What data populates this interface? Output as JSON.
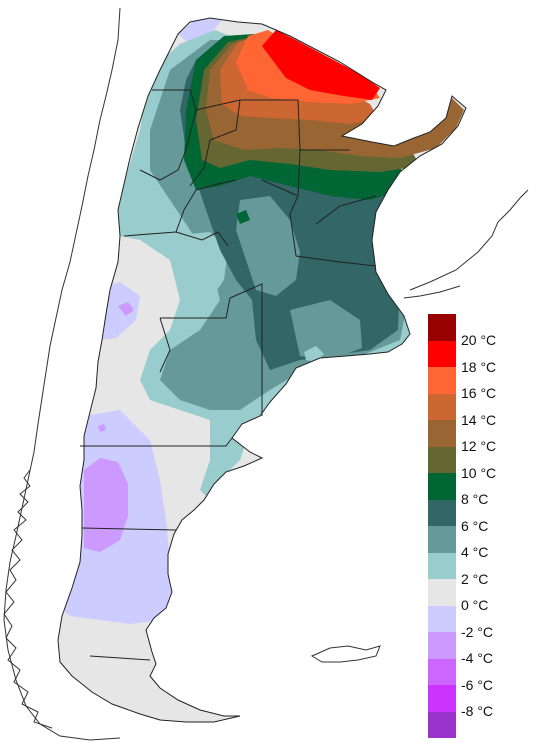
{
  "legend": {
    "unit": "°C",
    "bands": [
      {
        "color": "#990000"
      },
      {
        "color": "#ff0000"
      },
      {
        "color": "#ff6633"
      },
      {
        "color": "#cc6633"
      },
      {
        "color": "#996633"
      },
      {
        "color": "#666633"
      },
      {
        "color": "#006633"
      },
      {
        "color": "#336666"
      },
      {
        "color": "#669999"
      },
      {
        "color": "#99cccc"
      },
      {
        "color": "#e6e6e6"
      },
      {
        "color": "#ccccff"
      },
      {
        "color": "#cc99ff"
      },
      {
        "color": "#cc66ff"
      },
      {
        "color": "#cc33ff"
      },
      {
        "color": "#9933cc"
      }
    ],
    "labels": [
      "20 °C",
      "18 °C",
      "16 °C",
      "14 °C",
      "12 °C",
      "10 °C",
      "8 °C",
      "6 °C",
      "4 °C",
      "2 °C",
      "0 °C",
      "-2 °C",
      "-4 °C",
      "-6 °C",
      "-8 °C"
    ]
  }
}
